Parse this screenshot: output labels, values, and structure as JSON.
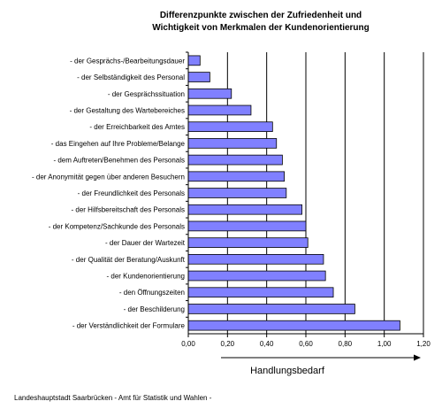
{
  "chart_data": {
    "type": "bar",
    "orientation": "horizontal",
    "title_lines": [
      "Differenzpunkte zwischen der Zufriedenheit und",
      "Wichtigkeit von Merkmalen der Kundenorientierung"
    ],
    "xlabel": "Handlungsbedarf",
    "ylabel": "",
    "xlim": [
      0,
      1.2
    ],
    "x_ticks": [
      "0,00",
      "0,20",
      "0,40",
      "0,60",
      "0,80",
      "1,00",
      "1,20"
    ],
    "grid": "vertical",
    "categories": [
      "- der Gesprächs-/Bearbeitungsdauer",
      "- der Selbständigkeit des Personal",
      "- der Gesprächssituation",
      "- der Gestaltung des Wartebereiches",
      "- der Erreichbarkeit des Amtes",
      "- das Eingehen auf Ihre Probleme/Belange",
      "- dem Auftreten/Benehmen des Personals",
      "- der Anonymität gegen über anderen Besuchern",
      "- der Freundlichkeit des Personals",
      "- der Hilfsbereitschaft des Personals",
      "- der Kompetenz/Sachkunde des Personals",
      "- der Dauer der Wartezeit",
      "- der Qualität der Beratung/Auskunft",
      "- der Kundenorientierung",
      "- den Öffnungszeiten",
      "- der Beschilderung",
      "- der Verständlichkeit der Formulare"
    ],
    "values": [
      0.06,
      0.11,
      0.22,
      0.32,
      0.43,
      0.45,
      0.48,
      0.49,
      0.5,
      0.58,
      0.6,
      0.61,
      0.69,
      0.7,
      0.74,
      0.85,
      1.08
    ],
    "bar_color": "#8080ff",
    "bar_edge_color": "#000000"
  },
  "footer": {
    "source": "Landeshauptstadt Saarbrücken - Amt für Statistik und Wahlen -"
  }
}
